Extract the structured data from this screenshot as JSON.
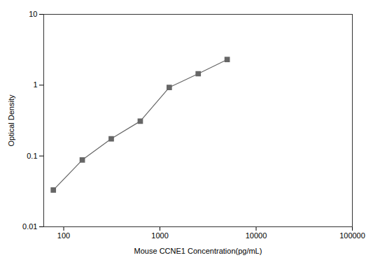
{
  "chart_data": {
    "type": "line",
    "xlabel": "Mouse CCNE1 Concentration(pg/mL)",
    "ylabel": "Optical Density",
    "x": [
      78,
      156,
      312,
      625,
      1250,
      2500,
      5000
    ],
    "values": [
      0.033,
      0.088,
      0.175,
      0.31,
      0.93,
      1.45,
      2.3
    ],
    "xlim": [
      62,
      100000
    ],
    "ylim": [
      0.01,
      10
    ],
    "xticks": [
      100,
      1000,
      10000,
      100000
    ],
    "yticks": [
      0.01,
      0.1,
      1,
      10
    ],
    "log": true,
    "color": "#666666",
    "marker": "square"
  }
}
